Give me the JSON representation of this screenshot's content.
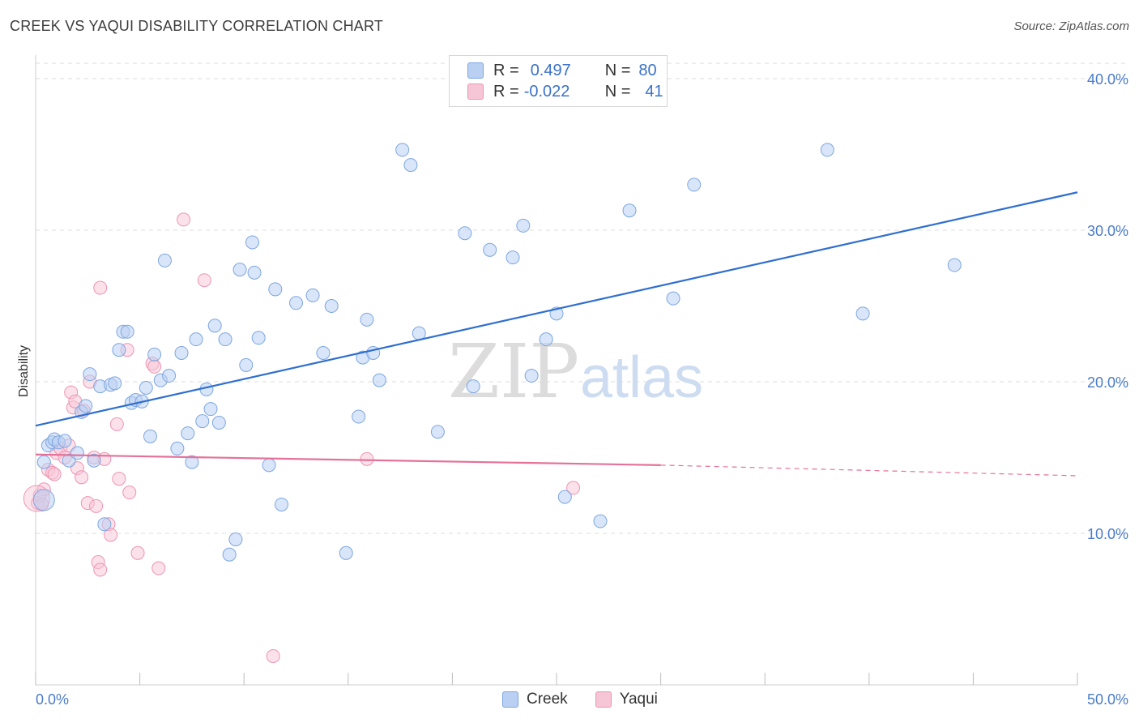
{
  "title": "CREEK VS YAQUI DISABILITY CORRELATION CHART",
  "source": "Source: ZipAtlas.com",
  "watermark": {
    "zip": "ZIP",
    "atlas": "atlas"
  },
  "legend": {
    "creek": {
      "r_label": "R =",
      "r_value": "0.497",
      "n_label": "N =",
      "n_value": "80"
    },
    "yaqui": {
      "r_label": "R =",
      "r_value": "-0.022",
      "n_label": "N =",
      "n_value": "41"
    }
  },
  "bottom_legend": {
    "creek": "Creek",
    "yaqui": "Yaqui"
  },
  "colors": {
    "creek_fill": "#b9d0f2",
    "creek_stroke": "#7da6e0",
    "creek_line": "#2f6fcf",
    "yaqui_fill": "#f7c6d6",
    "yaqui_stroke": "#ee93b2",
    "yaqui_line": "#e5719a",
    "tick_label": "#4a7cc8",
    "grid": "#dcdcdc"
  },
  "chart_data": {
    "type": "scatter",
    "title": "CREEK VS YAQUI DISABILITY CORRELATION CHART",
    "xlabel": "",
    "ylabel": "Disability",
    "xlim": [
      0,
      50
    ],
    "ylim": [
      0,
      40
    ],
    "x_tick_labels": [
      "0.0%",
      "50.0%"
    ],
    "y_tick_labels": [
      "10.0%",
      "20.0%",
      "30.0%",
      "40.0%"
    ],
    "y_ticks": [
      10,
      20,
      30,
      40
    ],
    "series": [
      {
        "name": "Creek",
        "R": 0.497,
        "N": 80,
        "trend": {
          "x": [
            0,
            50
          ],
          "y": [
            17.1,
            32.5
          ],
          "style": "solid"
        },
        "points": [
          [
            0.4,
            12.2
          ],
          [
            0.4,
            14.7
          ],
          [
            0.6,
            15.8
          ],
          [
            0.8,
            16.0
          ],
          [
            0.9,
            16.2
          ],
          [
            1.1,
            16.0
          ],
          [
            1.4,
            16.1
          ],
          [
            1.6,
            14.8
          ],
          [
            2.0,
            15.3
          ],
          [
            2.2,
            18.0
          ],
          [
            2.4,
            18.4
          ],
          [
            2.6,
            20.5
          ],
          [
            2.8,
            14.8
          ],
          [
            3.1,
            19.7
          ],
          [
            3.3,
            10.6
          ],
          [
            3.6,
            19.8
          ],
          [
            3.8,
            19.9
          ],
          [
            4.0,
            22.1
          ],
          [
            4.2,
            23.3
          ],
          [
            4.4,
            23.3
          ],
          [
            4.6,
            18.6
          ],
          [
            4.8,
            18.8
          ],
          [
            5.1,
            18.7
          ],
          [
            5.3,
            19.6
          ],
          [
            5.5,
            16.4
          ],
          [
            5.7,
            21.8
          ],
          [
            6.0,
            20.1
          ],
          [
            6.2,
            28.0
          ],
          [
            6.4,
            20.4
          ],
          [
            6.8,
            15.6
          ],
          [
            7.0,
            21.9
          ],
          [
            7.3,
            16.6
          ],
          [
            7.5,
            14.7
          ],
          [
            7.7,
            22.8
          ],
          [
            8.0,
            17.4
          ],
          [
            8.2,
            19.5
          ],
          [
            8.4,
            18.2
          ],
          [
            8.6,
            23.7
          ],
          [
            8.8,
            17.3
          ],
          [
            9.1,
            22.8
          ],
          [
            9.3,
            8.6
          ],
          [
            9.6,
            9.6
          ],
          [
            9.8,
            27.4
          ],
          [
            10.1,
            21.1
          ],
          [
            10.4,
            29.2
          ],
          [
            10.5,
            27.2
          ],
          [
            10.7,
            22.9
          ],
          [
            11.2,
            14.5
          ],
          [
            11.5,
            26.1
          ],
          [
            11.8,
            11.9
          ],
          [
            12.5,
            25.2
          ],
          [
            13.3,
            25.7
          ],
          [
            13.8,
            21.9
          ],
          [
            14.2,
            25.0
          ],
          [
            14.9,
            8.7
          ],
          [
            15.5,
            17.7
          ],
          [
            15.7,
            21.6
          ],
          [
            15.9,
            24.1
          ],
          [
            16.2,
            21.9
          ],
          [
            16.5,
            20.1
          ],
          [
            17.6,
            35.3
          ],
          [
            18.0,
            34.3
          ],
          [
            18.4,
            23.2
          ],
          [
            19.3,
            16.7
          ],
          [
            20.6,
            29.8
          ],
          [
            21.0,
            19.7
          ],
          [
            21.8,
            28.7
          ],
          [
            22.9,
            28.2
          ],
          [
            23.4,
            30.3
          ],
          [
            23.8,
            20.4
          ],
          [
            24.5,
            22.8
          ],
          [
            25.0,
            24.5
          ],
          [
            25.4,
            12.4
          ],
          [
            27.1,
            10.8
          ],
          [
            28.5,
            31.3
          ],
          [
            30.6,
            25.5
          ],
          [
            31.6,
            33.0
          ],
          [
            38.0,
            35.3
          ],
          [
            39.7,
            24.5
          ],
          [
            44.1,
            27.7
          ]
        ]
      },
      {
        "name": "Yaqui",
        "R": -0.022,
        "N": 41,
        "trend": {
          "x": [
            0,
            30
          ],
          "y": [
            15.2,
            14.5
          ],
          "style": "solid",
          "extension": {
            "x": [
              30,
              50
            ],
            "y": [
              14.5,
              13.8
            ],
            "style": "dashed"
          }
        },
        "points": [
          [
            0.1,
            12.0
          ],
          [
            0.2,
            12.5
          ],
          [
            0.3,
            11.9
          ],
          [
            0.4,
            12.9
          ],
          [
            0.6,
            14.2
          ],
          [
            0.8,
            14.0
          ],
          [
            0.9,
            13.9
          ],
          [
            1.0,
            15.3
          ],
          [
            1.2,
            15.6
          ],
          [
            1.4,
            15.0
          ],
          [
            1.6,
            15.8
          ],
          [
            1.7,
            19.3
          ],
          [
            1.8,
            18.3
          ],
          [
            1.9,
            18.7
          ],
          [
            2.0,
            14.3
          ],
          [
            2.2,
            13.7
          ],
          [
            2.3,
            18.1
          ],
          [
            2.5,
            12.0
          ],
          [
            2.6,
            20.0
          ],
          [
            2.8,
            15.0
          ],
          [
            2.9,
            11.8
          ],
          [
            3.0,
            8.1
          ],
          [
            3.1,
            7.6
          ],
          [
            3.1,
            26.2
          ],
          [
            3.3,
            14.9
          ],
          [
            3.5,
            10.6
          ],
          [
            3.6,
            9.9
          ],
          [
            3.9,
            17.2
          ],
          [
            4.0,
            13.6
          ],
          [
            4.4,
            22.1
          ],
          [
            4.5,
            12.7
          ],
          [
            4.9,
            8.7
          ],
          [
            5.6,
            21.2
          ],
          [
            5.7,
            21.0
          ],
          [
            5.9,
            7.7
          ],
          [
            7.1,
            30.7
          ],
          [
            8.1,
            26.7
          ],
          [
            11.4,
            1.9
          ],
          [
            15.9,
            14.9
          ],
          [
            25.8,
            13.0
          ],
          [
            0.05,
            12.3
          ]
        ]
      }
    ]
  }
}
